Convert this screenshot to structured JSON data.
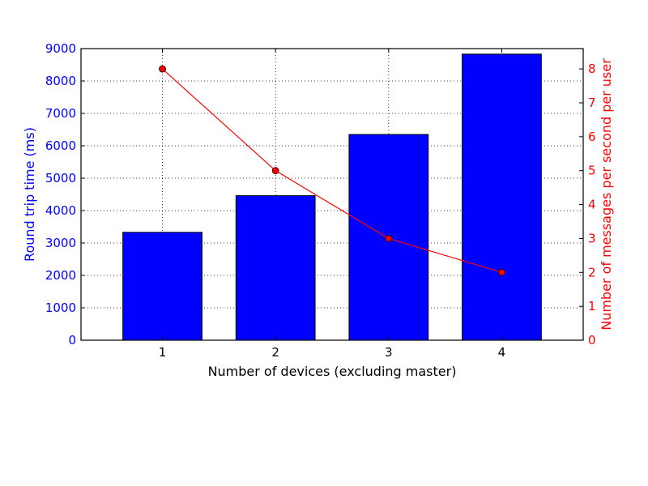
{
  "chart_data": {
    "type": "bar",
    "x": [
      1,
      2,
      3,
      4
    ],
    "xlabel": "Number of devices (excluding master)",
    "ylabel": "Round trip time (ms)",
    "y2label": "Number of messages per second per user",
    "ylim": [
      0,
      9000
    ],
    "y2lim": [
      0,
      8.6
    ],
    "xlim": [
      0.28,
      4.72
    ],
    "yticks": [
      0,
      1000,
      2000,
      3000,
      4000,
      5000,
      6000,
      7000,
      8000,
      9000
    ],
    "y2ticks": [
      0,
      1,
      2,
      3,
      4,
      5,
      6,
      7,
      8
    ],
    "grid": true,
    "series": [
      {
        "axis": "left",
        "type": "bar",
        "color": "#0000ff",
        "values": [
          3330,
          4460,
          6350,
          8830
        ]
      },
      {
        "axis": "right",
        "type": "line",
        "color": "#ff0000",
        "marker": "circle",
        "values": [
          8,
          5,
          3,
          2
        ]
      }
    ]
  }
}
